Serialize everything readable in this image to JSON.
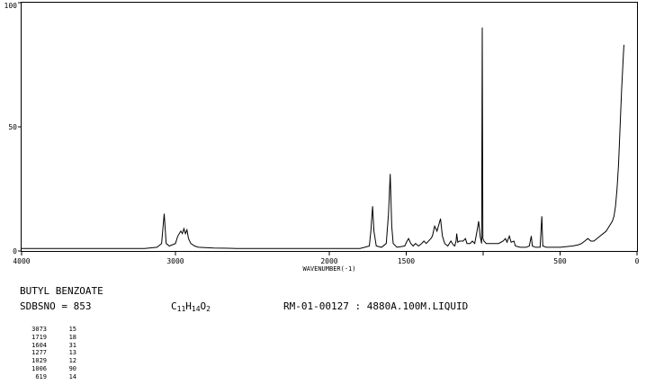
{
  "chart_data": {
    "type": "line",
    "title": "",
    "xlabel": "WAVENUMBER(-1)",
    "ylabel": "",
    "x_range": [
      4000,
      0
    ],
    "ylim": [
      0,
      100
    ],
    "x_ticks": [
      4000,
      3000,
      2000,
      1500,
      1000,
      500,
      0
    ],
    "x_tick_labels": [
      "4000",
      "3000",
      "2000",
      "1500",
      "",
      "500",
      "0"
    ],
    "y_ticks": [
      0,
      50,
      100
    ],
    "y_tick_labels": [
      "0",
      "50",
      "100"
    ],
    "grid": false,
    "series": [
      {
        "points": [
          [
            4000,
            1
          ],
          [
            3200,
            1
          ],
          [
            3120,
            1.5
          ],
          [
            3090,
            3
          ],
          [
            3073,
            15
          ],
          [
            3060,
            3
          ],
          [
            3040,
            2
          ],
          [
            3000,
            3
          ],
          [
            2985,
            6
          ],
          [
            2965,
            8
          ],
          [
            2955,
            7
          ],
          [
            2945,
            9
          ],
          [
            2935,
            7
          ],
          [
            2925,
            8.5
          ],
          [
            2915,
            5
          ],
          [
            2900,
            3
          ],
          [
            2875,
            2
          ],
          [
            2850,
            1.5
          ],
          [
            2750,
            1.2
          ],
          [
            2600,
            1
          ],
          [
            1800,
            1
          ],
          [
            1740,
            2
          ],
          [
            1730,
            8
          ],
          [
            1719,
            18
          ],
          [
            1710,
            8
          ],
          [
            1695,
            2
          ],
          [
            1660,
            1.5
          ],
          [
            1630,
            3
          ],
          [
            1615,
            15
          ],
          [
            1604,
            31
          ],
          [
            1594,
            10
          ],
          [
            1585,
            3
          ],
          [
            1560,
            1.5
          ],
          [
            1510,
            2
          ],
          [
            1495,
            4
          ],
          [
            1485,
            5
          ],
          [
            1470,
            3
          ],
          [
            1455,
            2
          ],
          [
            1440,
            3
          ],
          [
            1420,
            2
          ],
          [
            1400,
            3
          ],
          [
            1385,
            4
          ],
          [
            1370,
            3
          ],
          [
            1340,
            5
          ],
          [
            1330,
            6
          ],
          [
            1315,
            10
          ],
          [
            1300,
            8
          ],
          [
            1277,
            13
          ],
          [
            1265,
            6
          ],
          [
            1250,
            3
          ],
          [
            1230,
            2
          ],
          [
            1210,
            4
          ],
          [
            1195,
            2.5
          ],
          [
            1185,
            2
          ],
          [
            1176,
            4
          ],
          [
            1172,
            7
          ],
          [
            1165,
            3.5
          ],
          [
            1155,
            4
          ],
          [
            1130,
            4
          ],
          [
            1115,
            5
          ],
          [
            1105,
            3
          ],
          [
            1085,
            3
          ],
          [
            1070,
            4
          ],
          [
            1055,
            3
          ],
          [
            1040,
            8
          ],
          [
            1029,
            12
          ],
          [
            1020,
            6
          ],
          [
            1010,
            3
          ],
          [
            1006,
            90
          ],
          [
            1002,
            5
          ],
          [
            995,
            4
          ],
          [
            980,
            3
          ],
          [
            900,
            3
          ],
          [
            870,
            4
          ],
          [
            855,
            5
          ],
          [
            845,
            3.5
          ],
          [
            830,
            6
          ],
          [
            818,
            3.5
          ],
          [
            800,
            4
          ],
          [
            790,
            2
          ],
          [
            760,
            1.5
          ],
          [
            720,
            1.5
          ],
          [
            700,
            2
          ],
          [
            687,
            6
          ],
          [
            680,
            2
          ],
          [
            660,
            1.5
          ],
          [
            630,
            1.5
          ],
          [
            619,
            14
          ],
          [
            612,
            2
          ],
          [
            590,
            1.5
          ],
          [
            500,
            1.5
          ],
          [
            420,
            2
          ],
          [
            380,
            2.5
          ],
          [
            360,
            3
          ],
          [
            340,
            4
          ],
          [
            320,
            5
          ],
          [
            300,
            4
          ],
          [
            280,
            4
          ],
          [
            260,
            5
          ],
          [
            240,
            6
          ],
          [
            220,
            7
          ],
          [
            200,
            8
          ],
          [
            180,
            10
          ],
          [
            160,
            12
          ],
          [
            150,
            14
          ],
          [
            140,
            18
          ],
          [
            130,
            25
          ],
          [
            120,
            35
          ],
          [
            110,
            50
          ],
          [
            100,
            65
          ],
          [
            92,
            75
          ],
          [
            88,
            80
          ],
          [
            85,
            83
          ]
        ]
      }
    ],
    "peak_table": [
      {
        "x": 3073,
        "y": 15
      },
      {
        "x": 1719,
        "y": 18
      },
      {
        "x": 1604,
        "y": 31
      },
      {
        "x": 1277,
        "y": 13
      },
      {
        "x": 1029,
        "y": 12
      },
      {
        "x": 1006,
        "y": 90
      },
      {
        "x": 619,
        "y": 14
      }
    ]
  },
  "info": {
    "compound_name": "BUTYL BENZOATE",
    "sdbs_label": "SDBSNO = 853",
    "formula_parts": [
      "C",
      "11",
      "H",
      "14",
      "O",
      "2"
    ],
    "measurement": "RM-01-00127 : 4880A.100M.LIQUID"
  },
  "peak_table_text": [
    {
      "x": "3073",
      "y": "15"
    },
    {
      "x": "1719",
      "y": "18"
    },
    {
      "x": "1604",
      "y": "31"
    },
    {
      "x": "1277",
      "y": "13"
    },
    {
      "x": "1029",
      "y": "12"
    },
    {
      "x": "1006",
      "y": "90"
    },
    {
      "x": "619",
      "y": "14"
    }
  ]
}
